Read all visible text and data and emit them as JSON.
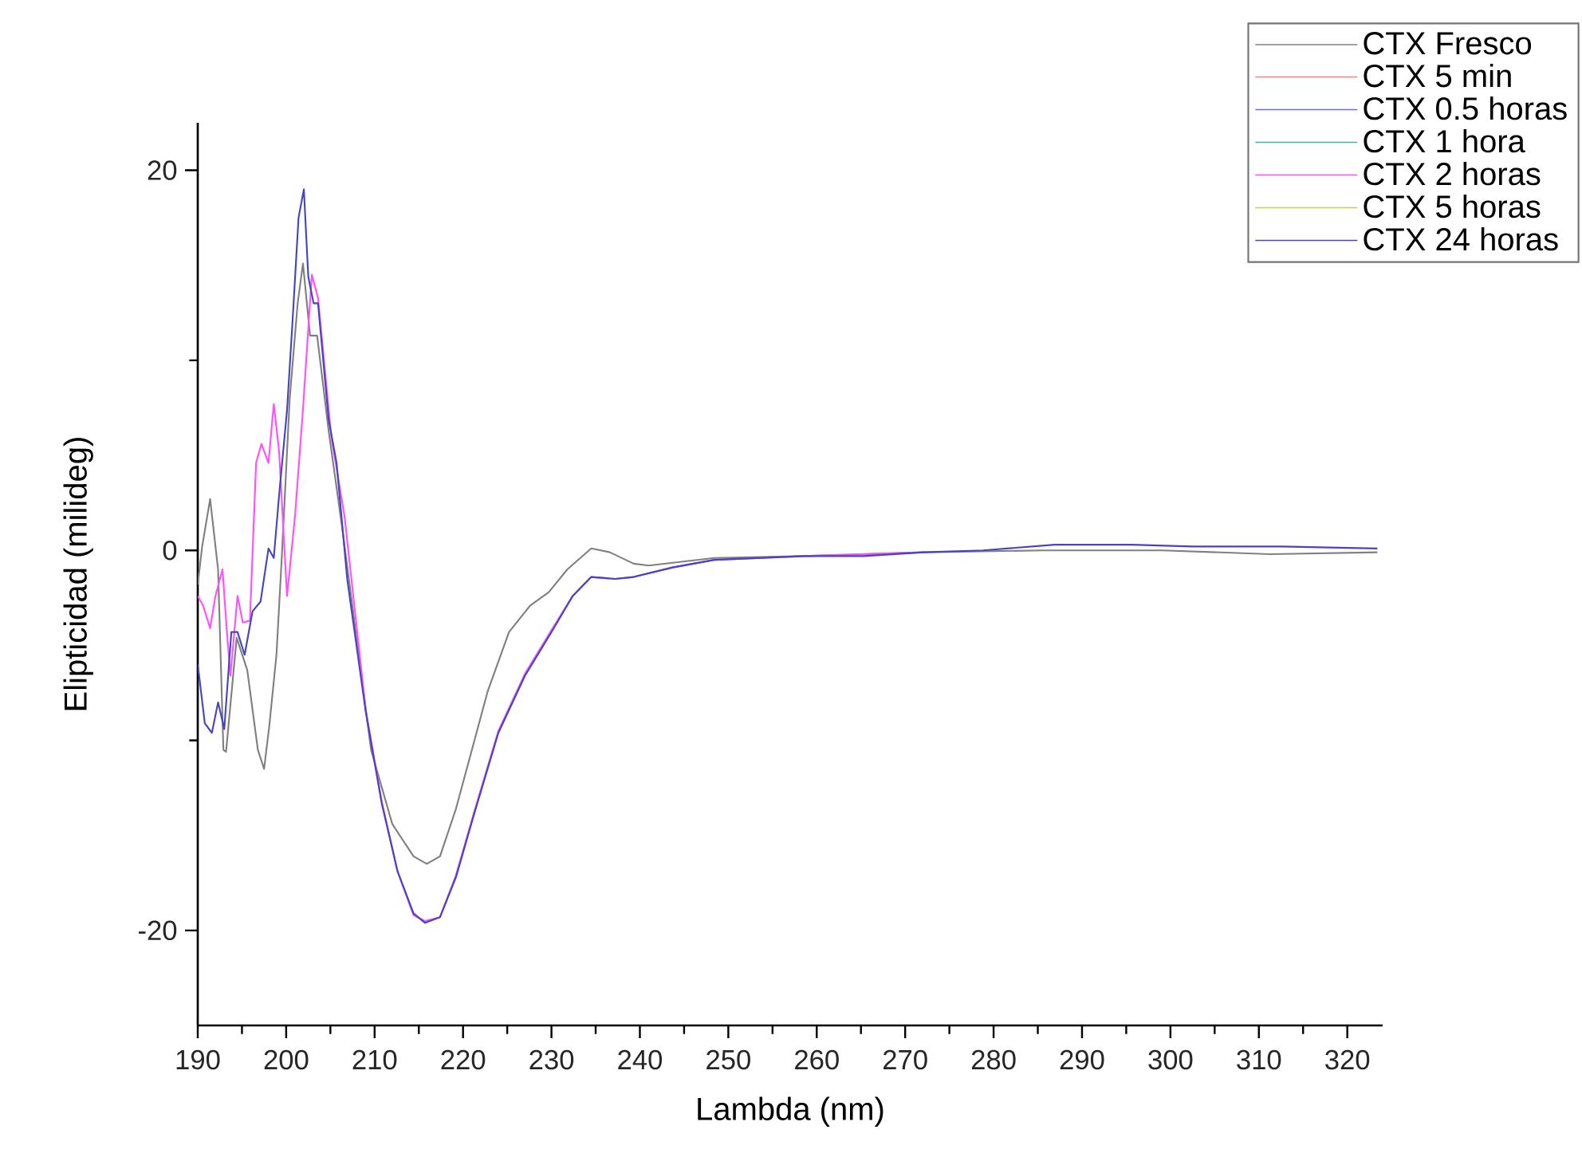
{
  "chart_data": {
    "type": "line",
    "xlabel": "Lambda (nm)",
    "ylabel": "Elipticidad (milideg)",
    "xlim": [
      190,
      324
    ],
    "ylim": [
      -25,
      22.5
    ],
    "xticks": [
      190,
      {
        "value": 195,
        "label": null
      },
      200,
      {
        "value": 205,
        "label": null
      },
      210,
      {
        "value": 215,
        "label": null
      },
      220,
      {
        "value": 225,
        "label": null
      },
      230,
      {
        "value": 235,
        "label": null
      },
      240,
      {
        "value": 245,
        "label": null
      },
      250,
      {
        "value": 255,
        "label": null
      },
      260,
      {
        "value": 265,
        "label": null
      },
      270,
      {
        "value": 275,
        "label": null
      },
      280,
      {
        "value": 285,
        "label": null
      },
      290,
      {
        "value": 295,
        "label": null
      },
      300,
      {
        "value": 305,
        "label": null
      },
      310,
      {
        "value": 315,
        "label": null
      },
      320
    ],
    "yticks": [
      -20,
      {
        "value": -10,
        "label": null
      },
      0,
      {
        "value": 10,
        "label": null
      },
      20
    ],
    "grid": false,
    "legend": "top right",
    "line_style": "solid",
    "series": [
      {
        "name": "CTX Fresco",
        "color": "#808080",
        "x": [
          190,
          190.5,
          191.4,
          192.3,
          192.9,
          193.2,
          194.4,
          195.6,
          196.8,
          197.5,
          198.1,
          198.9,
          199.5,
          200.4,
          201.3,
          201.9,
          202.7,
          203.5,
          204.8,
          206.3,
          209.6,
          212.0,
          214.4,
          215.9,
          217.4,
          219.2,
          221.0,
          222.8,
          225.2,
          227.6,
          229.7,
          231.8,
          234.5,
          236.6,
          239.3,
          241.0,
          248.4,
          258.6,
          272.1,
          285.6,
          299.1,
          311.3,
          323.4
        ],
        "values": [
          -1.8,
          0.2,
          2.7,
          -1.0,
          -10.5,
          -10.6,
          -4.6,
          -6.3,
          -10.5,
          -11.5,
          -9.2,
          -5.5,
          -0.4,
          8.0,
          13.0,
          15.1,
          11.3,
          11.3,
          6.3,
          1.3,
          -10.5,
          -14.4,
          -16.1,
          -16.5,
          -16.1,
          -13.6,
          -10.5,
          -7.4,
          -4.3,
          -2.9,
          -2.2,
          -1.0,
          0.1,
          -0.1,
          -0.7,
          -0.8,
          -0.4,
          -0.3,
          -0.1,
          0.0,
          0,
          -0.2,
          -0.1
        ]
      },
      {
        "name": "CTX 5 min",
        "color": "#ff8080"
      },
      {
        "name": "CTX 0.5 horas",
        "color": "#6a6aff"
      },
      {
        "name": "CTX 1 hora",
        "color": "#40b0b0"
      },
      {
        "name": "CTX 2 horas",
        "color": "#ff50ff",
        "x": [
          190,
          190.6,
          191.4,
          192.0,
          192.8,
          193.3,
          193.7,
          194.5,
          195.1,
          195.9,
          196.6,
          197.2,
          198.0,
          198.6,
          199.2,
          200.1,
          201.0,
          201.9,
          202.9,
          203.6,
          205.1,
          206.6,
          209.0,
          210.8,
          212.6,
          214.4,
          215.7,
          217.4,
          219.2,
          221.3,
          224.0,
          227.0,
          230.0,
          232.4,
          234.5,
          237.2,
          239.3,
          243.7,
          248.4,
          258.6,
          265.3,
          272.1
        ],
        "values": [
          -2.4,
          -2.9,
          -4.1,
          -2.4,
          -1.0,
          -4.3,
          -6.6,
          -2.4,
          -3.8,
          -3.7,
          4.6,
          5.6,
          4.6,
          7.7,
          5.2,
          -2.4,
          1.8,
          7.4,
          14.5,
          13.3,
          6.0,
          1.8,
          -8.4,
          -13.2,
          -16.9,
          -19.2,
          -19.5,
          -19.3,
          -17.1,
          -13.7,
          -9.5,
          -6.5,
          -4.2,
          -2.4,
          -1.4,
          -1.5,
          -1.4,
          -0.9,
          -0.5,
          -0.3,
          -0.2,
          -0.1
        ]
      },
      {
        "name": "CTX 5 horas",
        "color": "#c8c860"
      },
      {
        "name": "CTX 24 horas",
        "color": "#4545c0",
        "x": [
          190,
          190.8,
          191.6,
          192.3,
          193.0,
          193.8,
          194.5,
          195.3,
          196.2,
          197.1,
          198.0,
          198.6,
          199.2,
          200.1,
          200.7,
          201.4,
          202.0,
          202.5,
          203.1,
          203.6,
          204.8,
          205.7,
          206.9,
          209.0,
          210.8,
          212.6,
          214.4,
          215.7,
          217.4,
          219.2,
          221.3,
          224.0,
          227.0,
          230.0,
          232.4,
          234.5,
          237.2,
          239.3,
          243.7,
          248.4,
          258.6,
          265.3,
          272.1,
          278.8,
          286.9,
          295.7,
          302.5,
          312.6,
          323.4
        ],
        "values": [
          -6.0,
          -9.1,
          -9.6,
          -8.0,
          -9.4,
          -4.3,
          -4.3,
          -5.5,
          -3.2,
          -2.7,
          0.1,
          -0.4,
          2.9,
          7.4,
          11.9,
          17.5,
          19.0,
          14.4,
          13.0,
          13.0,
          6.9,
          4.6,
          -1.5,
          -8.5,
          -13.3,
          -16.9,
          -19.1,
          -19.6,
          -19.3,
          -17.2,
          -13.8,
          -9.6,
          -6.6,
          -4.3,
          -2.4,
          -1.4,
          -1.5,
          -1.4,
          -0.9,
          -0.5,
          -0.3,
          -0.3,
          -0.1,
          0,
          0.3,
          0.3,
          0.2,
          0.2,
          0.1
        ]
      }
    ]
  }
}
